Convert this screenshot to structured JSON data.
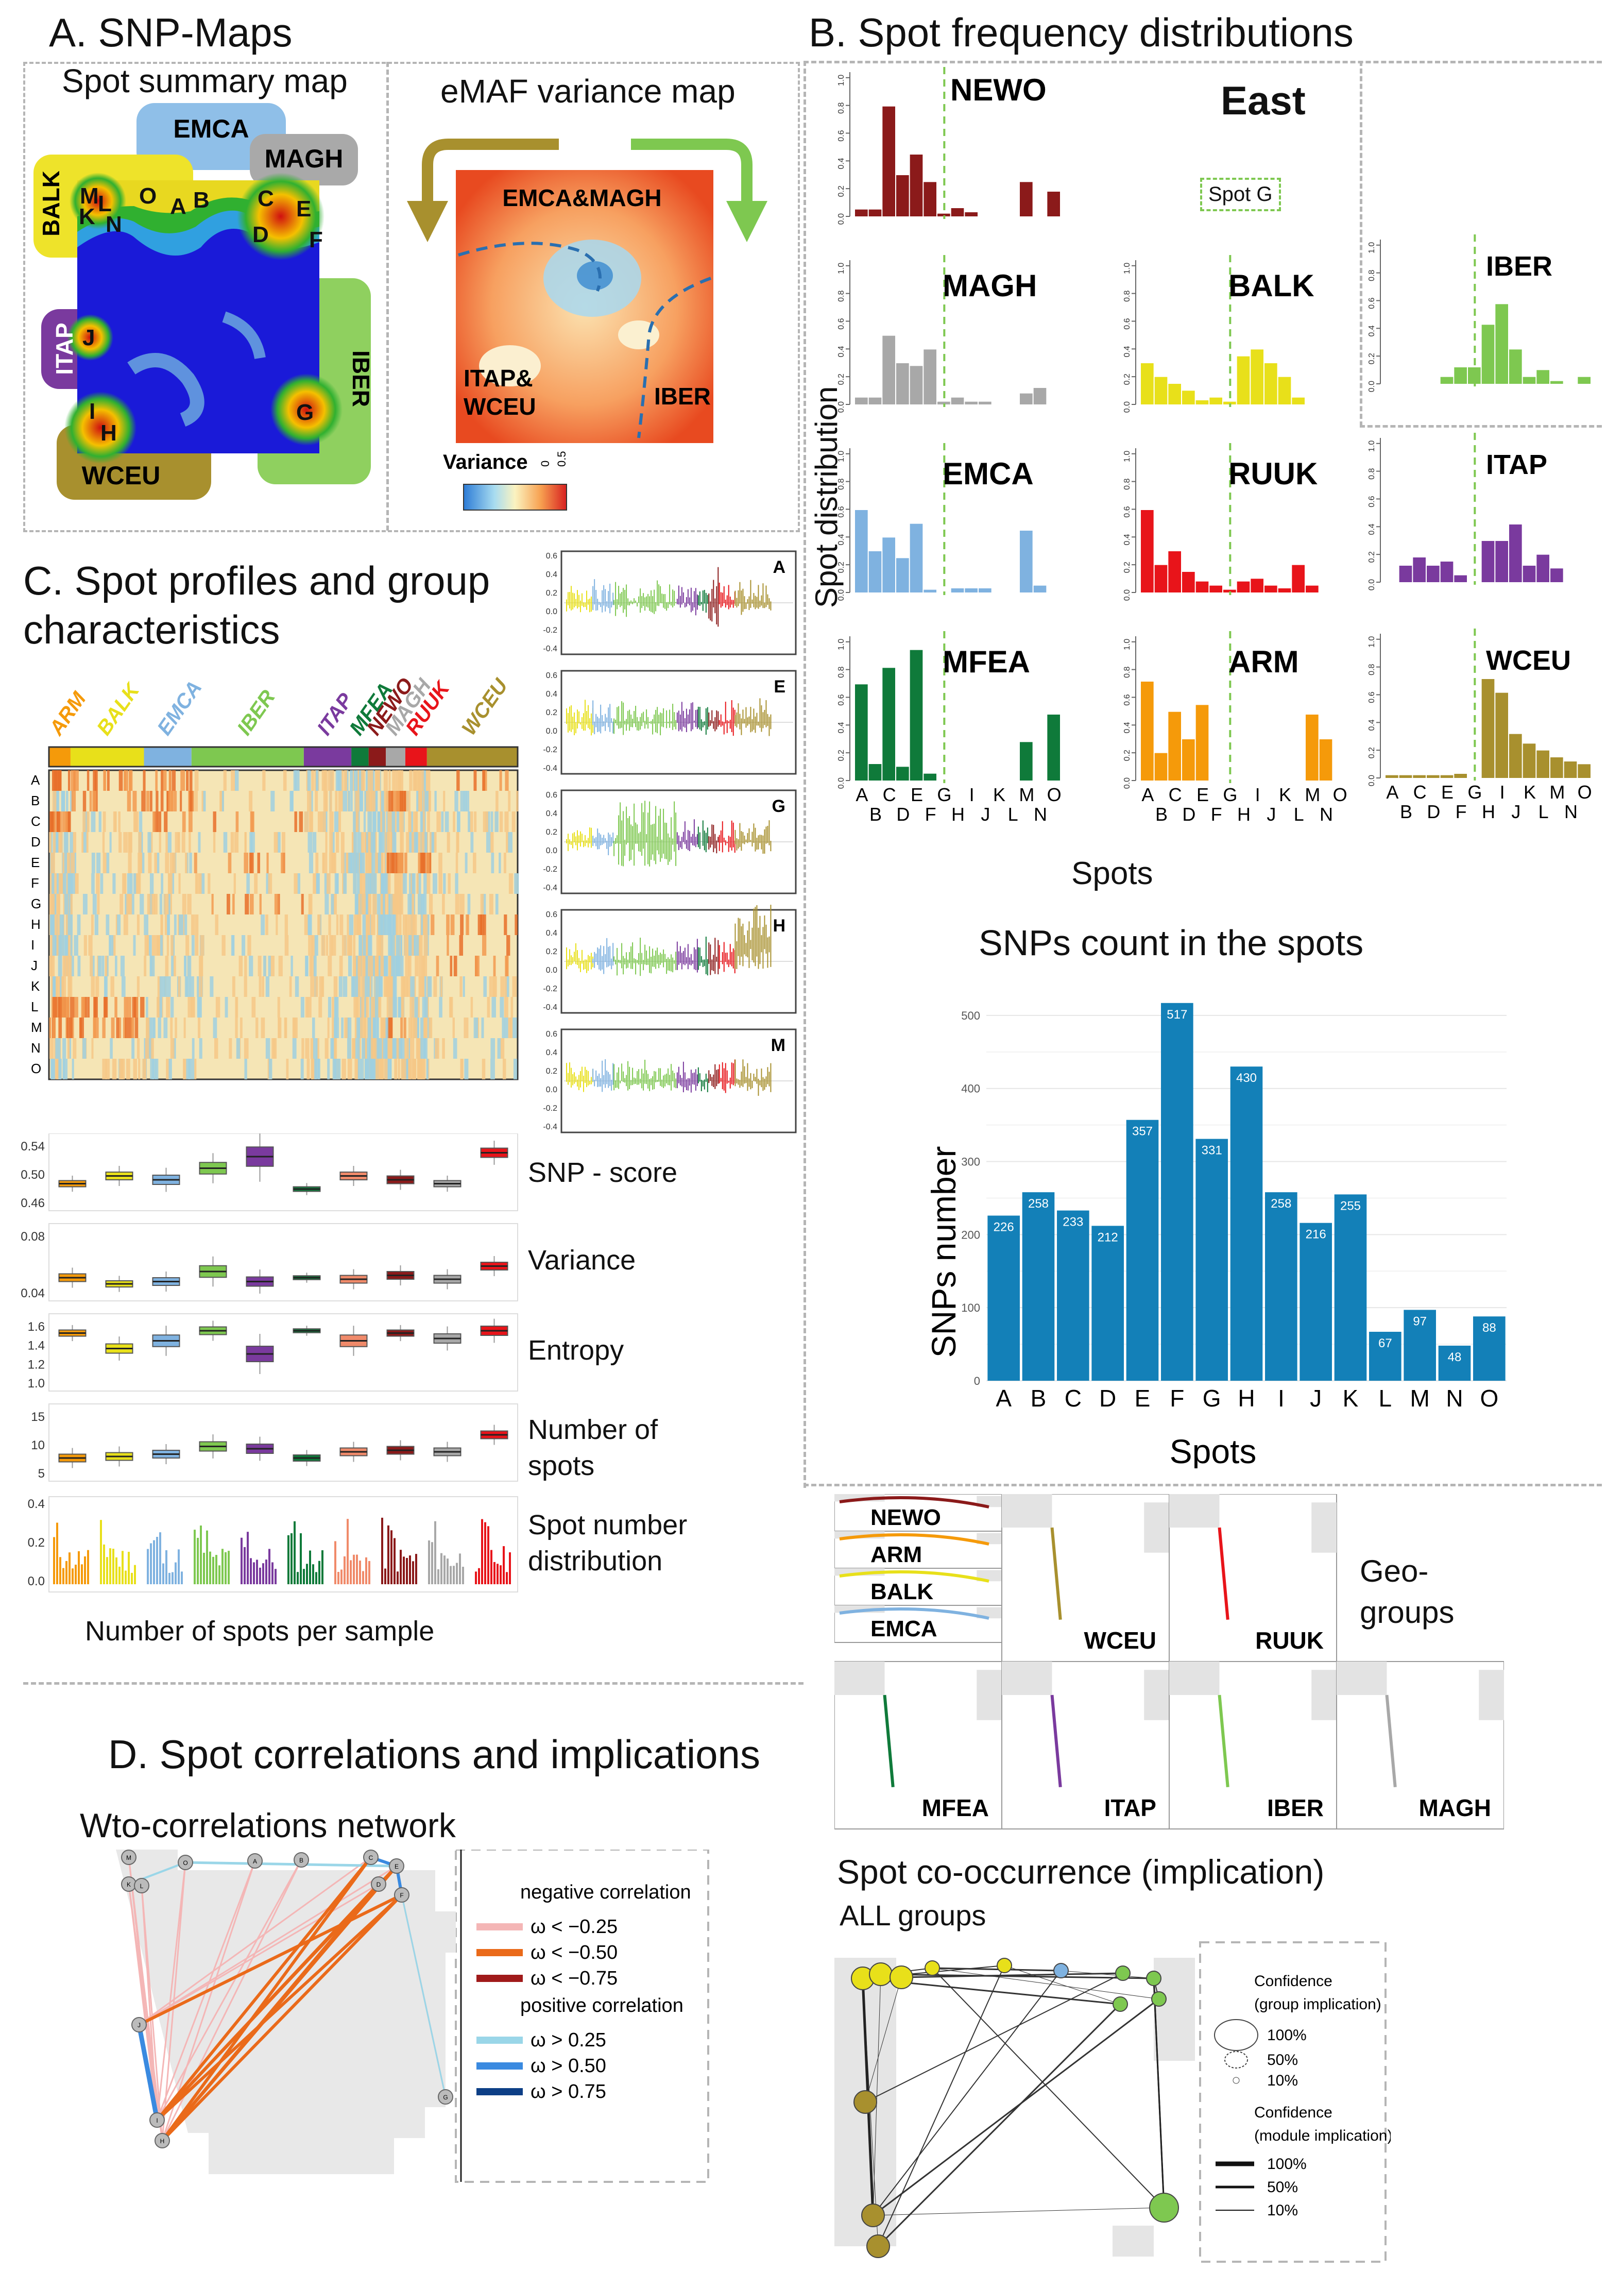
{
  "panelA": {
    "title": "A. SNP-Maps",
    "summary_title": "Spot summary map",
    "variance_title": "eMAF variance map",
    "groups": [
      "EMCA",
      "MAGH",
      "BALK",
      "ITAP",
      "IBER",
      "WCEU"
    ],
    "spot_letters": [
      "M",
      "L",
      "K",
      "N",
      "O",
      "A",
      "B",
      "C",
      "E",
      "D",
      "F",
      "J",
      "I",
      "H",
      "G"
    ],
    "variance_regions": [
      "EMCA&MAGH",
      "ITAP&\nWCEU",
      "IBER"
    ],
    "variance_region_1": "EMCA&MAGH",
    "variance_region_2a": "ITAP&",
    "variance_region_2b": "WCEU",
    "variance_region_3": "IBER",
    "variance_legend": "Variance",
    "variance_ticks": [
      "0",
      "0.5"
    ]
  },
  "panelB": {
    "title": "B. Spot frequency  distributions",
    "ylabel": "Spot distribution",
    "xlabel": "Spots",
    "east": "East",
    "spot_g": "Spot G",
    "groups": [
      "NEWO",
      "MAGH",
      "EMCA",
      "MFEA",
      "BALK",
      "RUUK",
      "ARM",
      "IBER",
      "ITAP",
      "WCEU"
    ],
    "xticks_top": [
      "A",
      "C",
      "E",
      "G",
      "I",
      "K",
      "M",
      "O"
    ],
    "xticks_bottom": [
      "B",
      "D",
      "F",
      "H",
      "J",
      "L",
      "N"
    ],
    "yticks": [
      "0.0",
      "0.2",
      "0.4",
      "0.6",
      "0.8",
      "1.0"
    ]
  },
  "snp_count": {
    "title": "SNPs count in the spots",
    "ylabel": "SNPs number",
    "xlabel": "Spots",
    "yticks": [
      "0",
      "100",
      "200",
      "300",
      "400",
      "500"
    ]
  },
  "chart_data": {
    "type": "bar",
    "title": "SNPs count in the spots",
    "xlabel": "Spots",
    "ylabel": "SNPs number",
    "categories": [
      "A",
      "B",
      "C",
      "D",
      "E",
      "F",
      "G",
      "H",
      "I",
      "J",
      "K",
      "L",
      "M",
      "N",
      "O"
    ],
    "values": [
      226,
      258,
      233,
      212,
      357,
      517,
      331,
      430,
      258,
      216,
      255,
      67,
      97,
      48,
      88
    ],
    "ylim": [
      0,
      550
    ]
  },
  "panelC": {
    "title_line1": "C. Spot profiles and group",
    "title_line2": "characteristics",
    "groups": [
      "ARM",
      "BALK",
      "EMCA",
      "IBER",
      "ITAP",
      "MFEA",
      "NEWO",
      "MAGH",
      "RUUK",
      "WCEU"
    ],
    "heat_rows": [
      "A",
      "B",
      "C",
      "D",
      "E",
      "F",
      "G",
      "H",
      "I",
      "J",
      "K",
      "L",
      "M",
      "N",
      "O"
    ],
    "profile_labels": [
      "A",
      "E",
      "G",
      "H",
      "M"
    ],
    "box_labels": [
      "SNP - score",
      "Variance",
      "Entropy",
      "Number of\nspots",
      "Spot number\ndistribution"
    ],
    "label_snp": "SNP - score",
    "label_var": "Variance",
    "label_ent": "Entropy",
    "label_num1": "Number of",
    "label_num2": "spots",
    "label_dist1": "Spot number",
    "label_dist2": "distribution",
    "snp_ticks": [
      "0.54",
      "0.50",
      "0.46"
    ],
    "var_ticks": [
      "0.08",
      "0.04"
    ],
    "ent_ticks": [
      "1.6",
      "1.4",
      "1.2",
      "1.0"
    ],
    "num_ticks": [
      "15",
      "10",
      "5"
    ],
    "dist_ticks": [
      "0.4",
      "0.2",
      "0.0"
    ],
    "xlabel": "Number of spots per sample"
  },
  "panelD": {
    "title": "D. Spot correlations and implications",
    "network_title": "Wto-correlations network",
    "legend": {
      "neg_title": "negative correlation",
      "neg": [
        "ω < −0.25",
        "ω < −0.50",
        "ω < −0.75"
      ],
      "pos_title": "positive correlation",
      "pos": [
        "ω > 0.25",
        "ω > 0.50",
        "ω > 0.75"
      ]
    }
  },
  "geo": {
    "label1": "Geo-",
    "label2": "groups",
    "groups": [
      "NEWO",
      "ARM",
      "BALK",
      "EMCA",
      "WCEU",
      "RUUK",
      "MFEA",
      "ITAP",
      "IBER",
      "MAGH"
    ]
  },
  "cooc": {
    "title": "Spot co-occurrence (implication)",
    "subtitle": "ALL groups",
    "legend_group_title": "Confidence",
    "legend_group_sub": "(group implication)",
    "legend_module_title": "Confidence",
    "legend_module_sub": "(module implication)",
    "levels": [
      "100%",
      "50%",
      "10%"
    ]
  },
  "colors": {
    "NEWO": "#8b1a1a",
    "MAGH": "#a8a8a8",
    "EMCA": "#7fb2e0",
    "MFEA": "#0f7a3a",
    "BALK": "#e8e01a",
    "RUUK": "#e8141a",
    "ARM": "#f59a0a",
    "IBER": "#7ec850",
    "ITAP": "#7a3a9e",
    "WCEU": "#a8902e",
    "bar_blue": "#1380b8"
  }
}
